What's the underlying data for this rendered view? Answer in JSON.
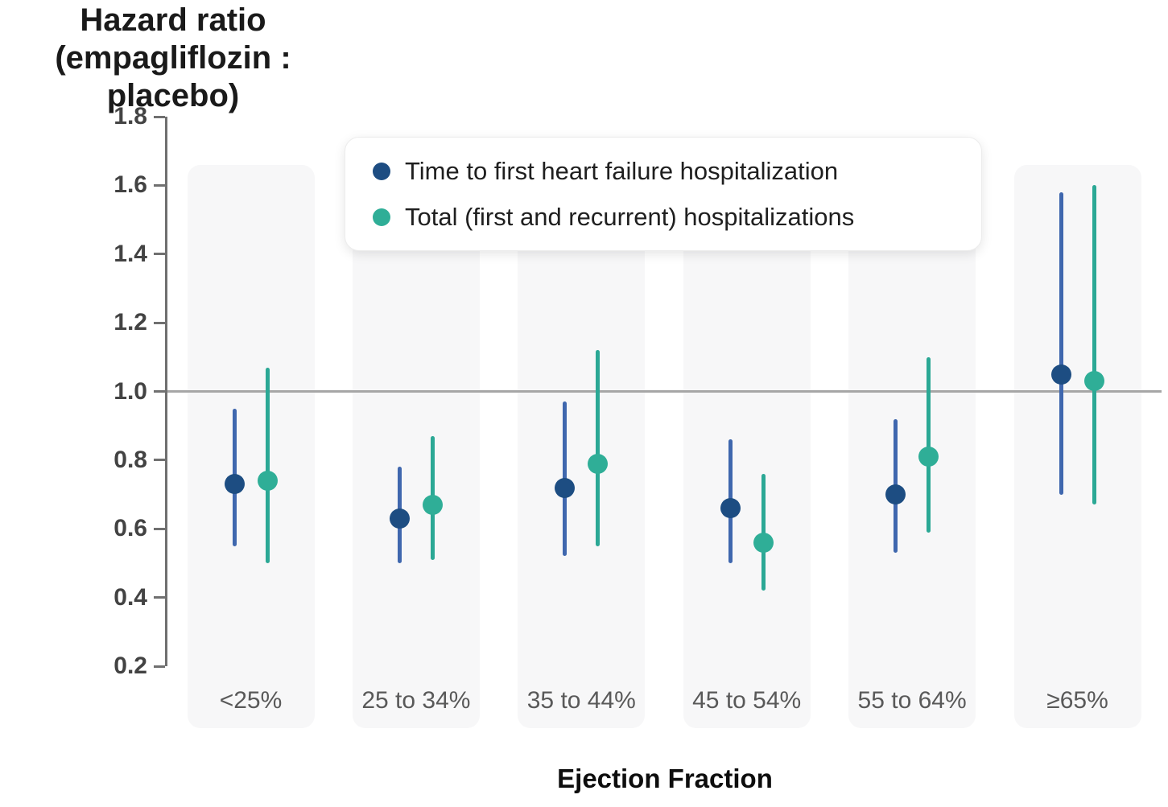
{
  "title": {
    "line1": "Hazard ratio",
    "line2": "(empagliflozin : placebo)"
  },
  "x_axis_title": "Ejection Fraction",
  "legend": {
    "items": [
      {
        "label": "Time to first heart failure hospitalization",
        "dot_color": "#1d4d82"
      },
      {
        "label": "Total (first and recurrent) hospitalizations",
        "dot_color": "#2fae97"
      }
    ]
  },
  "chart_data": {
    "type": "scatter",
    "subtype": "forest-point-range",
    "title": "Hazard ratio (empagliflozin : placebo)",
    "xlabel": "Ejection Fraction",
    "ylabel": "Hazard ratio",
    "categories": [
      "<25%",
      "25 to 34%",
      "35 to 44%",
      "45 to 54%",
      "55 to 64%",
      "≥65%"
    ],
    "ytick_labels": [
      "1.8",
      "1.6",
      "1.4",
      "1.2",
      "1.0",
      "0.8",
      "0.6",
      "0.4",
      "0.2"
    ],
    "yticks": [
      1.8,
      1.6,
      1.4,
      1.2,
      1.0,
      0.8,
      0.6,
      0.4,
      0.2
    ],
    "ylim": [
      0.2,
      1.8
    ],
    "reference_line": 1.0,
    "grid": false,
    "legend_position": "top-inside",
    "series": [
      {
        "name": "Time to first heart failure hospitalization",
        "dot_color": "#1d4d82",
        "line_color": "#3f67ae",
        "values": [
          {
            "category": "<25%",
            "estimate": 0.73,
            "ci_low": 0.55,
            "ci_high": 0.95
          },
          {
            "category": "25 to 34%",
            "estimate": 0.63,
            "ci_low": 0.5,
            "ci_high": 0.78
          },
          {
            "category": "35 to 44%",
            "estimate": 0.72,
            "ci_low": 0.52,
            "ci_high": 0.97
          },
          {
            "category": "45 to 54%",
            "estimate": 0.66,
            "ci_low": 0.5,
            "ci_high": 0.86
          },
          {
            "category": "55 to 64%",
            "estimate": 0.7,
            "ci_low": 0.53,
            "ci_high": 0.92
          },
          {
            "category": "≥65%",
            "estimate": 1.05,
            "ci_low": 0.7,
            "ci_high": 1.58
          }
        ]
      },
      {
        "name": "Total (first and recurrent) hospitalizations",
        "dot_color": "#2fae97",
        "line_color": "#2ba895",
        "values": [
          {
            "category": "<25%",
            "estimate": 0.74,
            "ci_low": 0.5,
            "ci_high": 1.07
          },
          {
            "category": "25 to 34%",
            "estimate": 0.67,
            "ci_low": 0.51,
            "ci_high": 0.87
          },
          {
            "category": "35 to 44%",
            "estimate": 0.79,
            "ci_low": 0.55,
            "ci_high": 1.12
          },
          {
            "category": "45 to 54%",
            "estimate": 0.56,
            "ci_low": 0.42,
            "ci_high": 0.76
          },
          {
            "category": "55 to 64%",
            "estimate": 0.81,
            "ci_low": 0.59,
            "ci_high": 1.1
          },
          {
            "category": "≥65%",
            "estimate": 1.03,
            "ci_low": 0.67,
            "ci_high": 1.6
          }
        ]
      }
    ]
  }
}
